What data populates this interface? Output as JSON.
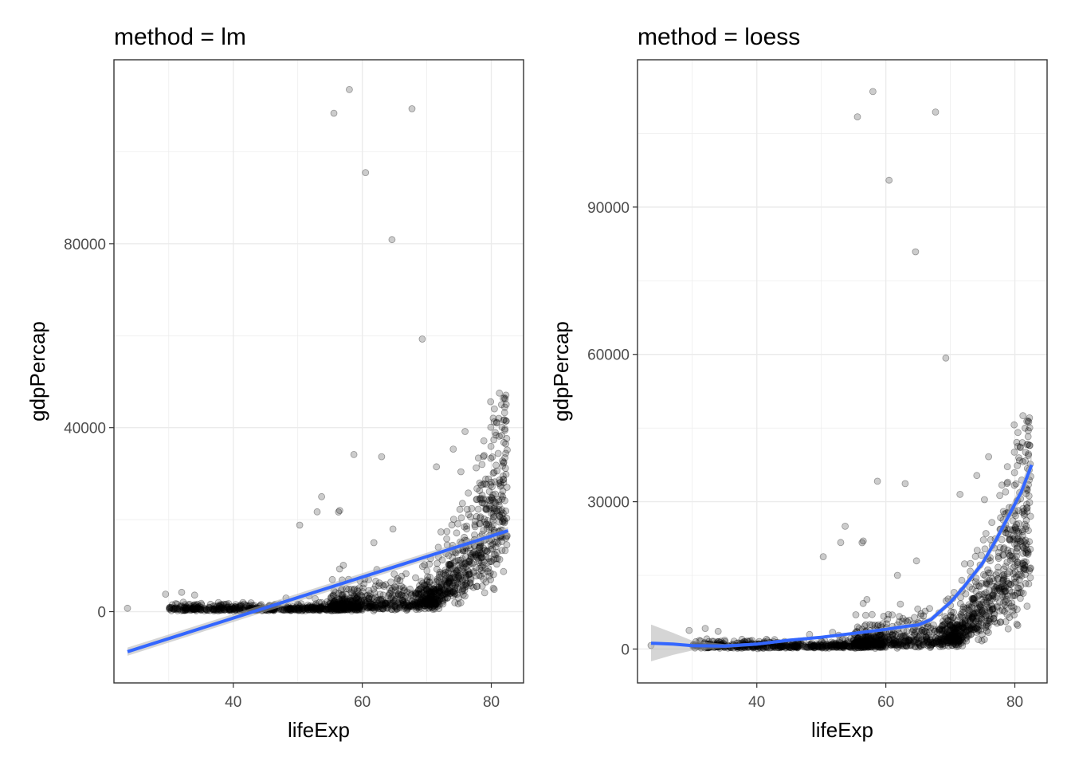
{
  "chart_data": [
    {
      "type": "scatter",
      "title": "method = lm",
      "xlabel": "lifeExp",
      "ylabel": "gdpPercap",
      "xlim": [
        21.5,
        85.0
      ],
      "ylim": [
        -15500,
        120000
      ],
      "xticks": [
        40,
        60,
        80
      ],
      "yticks": [
        0,
        40000,
        80000
      ],
      "grid": true,
      "legend": "none",
      "colors": {
        "points": "#000000",
        "fit": "#3366ff",
        "band": "#b3b3b3"
      },
      "outliers": [
        {
          "x": 55.6,
          "y": 108382
        },
        {
          "x": 58.0,
          "y": 113523
        },
        {
          "x": 67.7,
          "y": 109348
        },
        {
          "x": 60.5,
          "y": 95458
        },
        {
          "x": 64.6,
          "y": 80894
        },
        {
          "x": 69.3,
          "y": 59265
        },
        {
          "x": 23.6,
          "y": 731
        },
        {
          "x": 58.7,
          "y": 34167
        },
        {
          "x": 63.0,
          "y": 33693
        },
        {
          "x": 53.7,
          "y": 25000
        },
        {
          "x": 56.5,
          "y": 22000
        },
        {
          "x": 53.0,
          "y": 21700
        },
        {
          "x": 71.5,
          "y": 31500
        },
        {
          "x": 50.3,
          "y": 18800
        },
        {
          "x": 61.8,
          "y": 15000
        },
        {
          "x": 29.5,
          "y": 3800
        },
        {
          "x": 32.0,
          "y": 4200
        },
        {
          "x": 34.0,
          "y": 3600
        }
      ],
      "fit": {
        "method": "lm",
        "x": [
          23.6,
          82.6
        ],
        "y": [
          -8700,
          17600
        ],
        "se_lower": [
          -9600,
          16800
        ],
        "se_upper": [
          -7800,
          18400
        ]
      }
    },
    {
      "type": "scatter",
      "title": "method = loess",
      "xlabel": "lifeExp",
      "ylabel": "gdpPercap",
      "xlim": [
        21.5,
        85.0
      ],
      "ylim": [
        -6900,
        120000
      ],
      "xticks": [
        40,
        60,
        80
      ],
      "yticks": [
        0,
        30000,
        60000,
        90000
      ],
      "grid": true,
      "legend": "none",
      "colors": {
        "points": "#000000",
        "fit": "#3366ff",
        "band": "#b3b3b3"
      },
      "outliers": [
        {
          "x": 55.6,
          "y": 108382
        },
        {
          "x": 58.0,
          "y": 113523
        },
        {
          "x": 67.7,
          "y": 109348
        },
        {
          "x": 60.5,
          "y": 95458
        },
        {
          "x": 64.6,
          "y": 80894
        },
        {
          "x": 69.3,
          "y": 59265
        },
        {
          "x": 23.6,
          "y": 731
        },
        {
          "x": 58.7,
          "y": 34167
        },
        {
          "x": 63.0,
          "y": 33693
        },
        {
          "x": 53.7,
          "y": 25000
        },
        {
          "x": 56.5,
          "y": 22000
        },
        {
          "x": 53.0,
          "y": 21700
        },
        {
          "x": 71.5,
          "y": 31500
        },
        {
          "x": 50.3,
          "y": 18800
        },
        {
          "x": 61.8,
          "y": 15000
        },
        {
          "x": 29.5,
          "y": 3800
        },
        {
          "x": 32.0,
          "y": 4200
        },
        {
          "x": 34.0,
          "y": 3600
        }
      ],
      "fit": {
        "method": "loess",
        "x": [
          23.6,
          27,
          30,
          35,
          40,
          45,
          50,
          55,
          60,
          63,
          65,
          67,
          70,
          72,
          75,
          77,
          79,
          81,
          82.6
        ],
        "y": [
          1200,
          1000,
          700,
          600,
          1000,
          1800,
          2400,
          3200,
          4000,
          4600,
          4900,
          6000,
          9500,
          12500,
          17500,
          22000,
          27000,
          32000,
          37500
        ],
        "se_lower": [
          -2500,
          -1200,
          -300,
          200,
          700,
          1500,
          2100,
          2900,
          3600,
          4100,
          4400,
          5400,
          8900,
          11800,
          16700,
          21000,
          25700,
          30500,
          35500
        ],
        "se_upper": [
          5000,
          3300,
          1700,
          1000,
          1300,
          2100,
          2700,
          3500,
          4400,
          5100,
          5400,
          6600,
          10100,
          13200,
          18300,
          23000,
          28300,
          33500,
          39500
        ]
      }
    }
  ]
}
